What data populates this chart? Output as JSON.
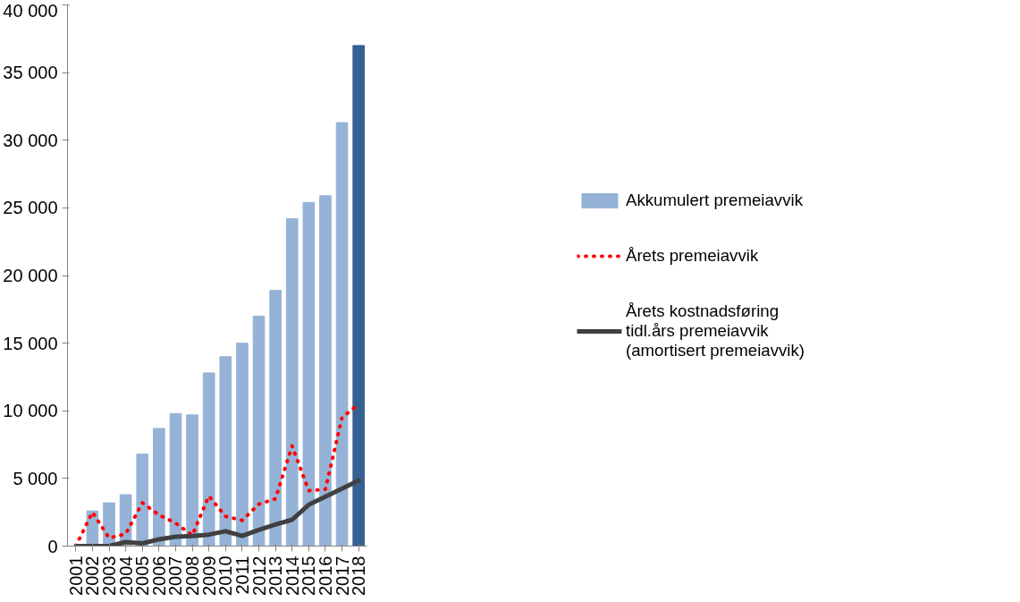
{
  "chart_data": {
    "type": "bar",
    "categories": [
      "2001",
      "2002",
      "2003",
      "2004",
      "2005",
      "2006",
      "2007",
      "2008",
      "2009",
      "2010",
      "2011",
      "2012",
      "2013",
      "2014",
      "2015",
      "2016",
      "2017",
      "2018"
    ],
    "series": [
      {
        "name": "Akkumulert premeiavvik",
        "color": "#95b3d7",
        "colors": [
          "#95b3d7",
          "#95b3d7",
          "#95b3d7",
          "#95b3d7",
          "#95b3d7",
          "#95b3d7",
          "#95b3d7",
          "#95b3d7",
          "#95b3d7",
          "#95b3d7",
          "#95b3d7",
          "#95b3d7",
          "#95b3d7",
          "#95b3d7",
          "#95b3d7",
          "#95b3d7",
          "#95b3d7",
          "#376092"
        ],
        "values": [
          0,
          2600,
          3200,
          3800,
          6800,
          8700,
          9800,
          9700,
          12800,
          14000,
          15000,
          17000,
          18900,
          24200,
          25400,
          25900,
          31300,
          37000
        ]
      },
      {
        "name": "Årets premeiavvik",
        "type": "line",
        "color": "#ff0000",
        "line_style": "dotted",
        "values": [
          0,
          2500,
          600,
          900,
          3200,
          2300,
          1700,
          800,
          3700,
          2200,
          1900,
          3100,
          3500,
          7400,
          4100,
          4200,
          9500,
          10500
        ]
      },
      {
        "name": "Årets kostnadsføring tidl.års premeiavvik (amortisert premeiavvik)",
        "type": "line",
        "color": "#404040",
        "line_style": "solid",
        "values": [
          0,
          0,
          0,
          300,
          200,
          500,
          700,
          750,
          850,
          1100,
          750,
          1200,
          1600,
          1950,
          3050,
          3650,
          4250,
          4850
        ]
      }
    ],
    "ylim": [
      0,
      40000
    ],
    "yticks": [
      {
        "value": 0,
        "label": "0"
      },
      {
        "value": 5000,
        "label": "5 000"
      },
      {
        "value": 10000,
        "label": "10 000"
      },
      {
        "value": 15000,
        "label": "15 000"
      },
      {
        "value": 20000,
        "label": "20 000"
      },
      {
        "value": 25000,
        "label": "25 000"
      },
      {
        "value": 30000,
        "label": "30 000"
      },
      {
        "value": 35000,
        "label": "35 000"
      },
      {
        "value": 40000,
        "label": "40 000"
      }
    ],
    "grid": false,
    "legend": "right"
  }
}
